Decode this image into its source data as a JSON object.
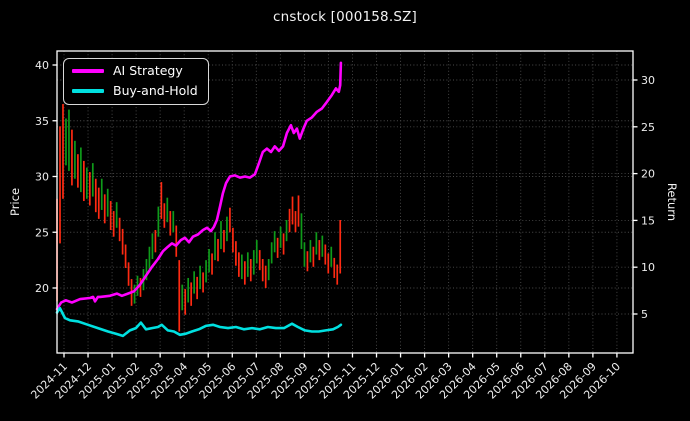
{
  "title": "cnstock [000158.SZ]",
  "axes": {
    "left_label": "Price",
    "right_label": "Return",
    "left_ticks": [
      40,
      35,
      30,
      25,
      20
    ],
    "right_ticks": [
      30,
      25,
      20,
      15,
      10,
      5
    ],
    "x_tick_labels": [
      "2024-11",
      "2024-12",
      "2025-01",
      "2025-02",
      "2025-03",
      "2025-04",
      "2025-05",
      "2025-06",
      "2025-07",
      "2025-08",
      "2025-09",
      "2025-10",
      "2025-11",
      "2025-12",
      "2026-01",
      "2026-02",
      "2026-03",
      "2026-04",
      "2026-05",
      "2026-06",
      "2026-07",
      "2026-08",
      "2026-09",
      "2026-10"
    ]
  },
  "legend": [
    {
      "label": "AI Strategy",
      "color": "#ff00ff"
    },
    {
      "label": "Buy-and-Hold",
      "color": "#00e0e0"
    }
  ],
  "colors": {
    "background": "#000000",
    "frame": "#ffffff",
    "grid": "#4c4c4c",
    "tick_text": "#ededed",
    "candle_up": "#0f9b1a",
    "candle_down": "#ff2a12",
    "ai_strategy": "#ff00ff",
    "buy_and_hold": "#00e0e0"
  },
  "chart_data": {
    "type": "mixed-candlestick-line",
    "title": "cnstock [000158.SZ]",
    "ylabel_left": "Price",
    "ylabel_right": "Return",
    "x_unit": "months since 2024-11 (tick index 0 = 2024-11, 23 = 2026-10)",
    "x_tick_labels": [
      "2024-11",
      "2024-12",
      "2025-01",
      "2025-02",
      "2025-03",
      "2025-04",
      "2025-05",
      "2025-06",
      "2025-07",
      "2025-08",
      "2025-09",
      "2025-10",
      "2025-11",
      "2025-12",
      "2026-01",
      "2026-02",
      "2026-03",
      "2026-04",
      "2026-05",
      "2026-06",
      "2026-07",
      "2026-08",
      "2026-09",
      "2026-10"
    ],
    "left_ylim": [
      14.5,
      41.3
    ],
    "right_ylim": [
      0.8,
      33.1
    ],
    "grid": "dotted, both x and y ticks",
    "legend_position": "upper left",
    "series": [
      {
        "name": "AI Strategy",
        "color": "#ff00ff",
        "axis": "left",
        "line_width": 2.6,
        "points": [
          [
            -0.29,
            18.1
          ],
          [
            -0.12,
            18.7
          ],
          [
            0.08,
            18.9
          ],
          [
            0.33,
            18.7
          ],
          [
            0.67,
            19.0
          ],
          [
            1.08,
            19.1
          ],
          [
            1.21,
            19.2
          ],
          [
            1.29,
            18.8
          ],
          [
            1.41,
            19.2
          ],
          [
            1.5,
            19.2
          ],
          [
            1.91,
            19.3
          ],
          [
            2.2,
            19.5
          ],
          [
            2.41,
            19.3
          ],
          [
            2.66,
            19.5
          ],
          [
            2.91,
            19.7
          ],
          [
            3.16,
            20.3
          ],
          [
            3.41,
            21.1
          ],
          [
            3.66,
            21.9
          ],
          [
            3.91,
            22.6
          ],
          [
            4.12,
            23.3
          ],
          [
            4.32,
            23.7
          ],
          [
            4.49,
            24.0
          ],
          [
            4.66,
            23.8
          ],
          [
            4.86,
            24.3
          ],
          [
            5.03,
            24.5
          ],
          [
            5.2,
            24.1
          ],
          [
            5.36,
            24.6
          ],
          [
            5.57,
            24.8
          ],
          [
            5.78,
            25.2
          ],
          [
            5.95,
            25.4
          ],
          [
            6.11,
            25.1
          ],
          [
            6.24,
            25.5
          ],
          [
            6.36,
            26.1
          ],
          [
            6.49,
            27.3
          ],
          [
            6.61,
            28.5
          ],
          [
            6.74,
            29.4
          ],
          [
            6.9,
            30.0
          ],
          [
            7.11,
            30.1
          ],
          [
            7.32,
            29.9
          ],
          [
            7.53,
            30.0
          ],
          [
            7.73,
            29.9
          ],
          [
            7.94,
            30.2
          ],
          [
            8.11,
            31.2
          ],
          [
            8.27,
            32.2
          ],
          [
            8.44,
            32.5
          ],
          [
            8.61,
            32.2
          ],
          [
            8.77,
            32.7
          ],
          [
            8.94,
            32.3
          ],
          [
            9.11,
            32.7
          ],
          [
            9.27,
            33.9
          ],
          [
            9.44,
            34.6
          ],
          [
            9.56,
            33.9
          ],
          [
            9.69,
            34.3
          ],
          [
            9.81,
            33.4
          ],
          [
            9.94,
            34.2
          ],
          [
            10.1,
            35.0
          ],
          [
            10.31,
            35.3
          ],
          [
            10.52,
            35.8
          ],
          [
            10.73,
            36.1
          ],
          [
            10.94,
            36.7
          ],
          [
            11.14,
            37.3
          ],
          [
            11.31,
            37.9
          ],
          [
            11.43,
            37.6
          ],
          [
            11.49,
            38.2
          ],
          [
            11.52,
            40.2
          ]
        ]
      },
      {
        "name": "Buy-and-Hold",
        "color": "#00e0e0",
        "axis": "left",
        "line_width": 2.6,
        "points": [
          [
            -0.29,
            17.8
          ],
          [
            -0.17,
            18.2
          ],
          [
            0.04,
            17.3
          ],
          [
            0.25,
            17.1
          ],
          [
            0.58,
            17.0
          ],
          [
            1.0,
            16.7
          ],
          [
            1.41,
            16.4
          ],
          [
            1.83,
            16.1
          ],
          [
            2.16,
            15.9
          ],
          [
            2.45,
            15.7
          ],
          [
            2.74,
            16.2
          ],
          [
            2.99,
            16.4
          ],
          [
            3.2,
            16.9
          ],
          [
            3.41,
            16.3
          ],
          [
            3.66,
            16.4
          ],
          [
            3.91,
            16.5
          ],
          [
            4.07,
            16.7
          ],
          [
            4.32,
            16.2
          ],
          [
            4.57,
            16.1
          ],
          [
            4.82,
            15.8
          ],
          [
            5.07,
            15.9
          ],
          [
            5.32,
            16.1
          ],
          [
            5.61,
            16.3
          ],
          [
            5.9,
            16.6
          ],
          [
            6.2,
            16.7
          ],
          [
            6.49,
            16.5
          ],
          [
            6.82,
            16.4
          ],
          [
            7.15,
            16.5
          ],
          [
            7.48,
            16.3
          ],
          [
            7.82,
            16.4
          ],
          [
            8.15,
            16.3
          ],
          [
            8.48,
            16.5
          ],
          [
            8.81,
            16.4
          ],
          [
            9.15,
            16.4
          ],
          [
            9.48,
            16.8
          ],
          [
            9.73,
            16.5
          ],
          [
            10.02,
            16.2
          ],
          [
            10.31,
            16.1
          ],
          [
            10.6,
            16.1
          ],
          [
            10.89,
            16.2
          ],
          [
            11.19,
            16.3
          ],
          [
            11.39,
            16.5
          ],
          [
            11.52,
            16.7
          ]
        ]
      }
    ],
    "candles": {
      "name": "daily price high-low bars",
      "axis": "left",
      "span": [
        -0.29,
        11.49
      ],
      "up_color": "#0f9b1a",
      "down_color": "#ff2a12",
      "bars_format": "[high, low, dir] dir:0=red(down) 1=green(up)",
      "bars": [
        [
          28.0,
          18.8,
          0
        ],
        [
          34.5,
          24.0,
          0
        ],
        [
          36.5,
          28.0,
          0
        ],
        [
          35.2,
          31.0,
          1
        ],
        [
          36.0,
          30.5,
          1
        ],
        [
          34.2,
          29.2,
          0
        ],
        [
          33.2,
          29.8,
          1
        ],
        [
          32.0,
          29.0,
          0
        ],
        [
          32.6,
          28.6,
          1
        ],
        [
          31.4,
          27.8,
          0
        ],
        [
          30.8,
          28.0,
          1
        ],
        [
          30.4,
          27.4,
          0
        ],
        [
          31.2,
          28.2,
          1
        ],
        [
          29.8,
          26.8,
          0
        ],
        [
          29.0,
          26.2,
          0
        ],
        [
          29.8,
          27.0,
          1
        ],
        [
          28.4,
          25.8,
          0
        ],
        [
          28.9,
          26.4,
          1
        ],
        [
          27.8,
          25.2,
          0
        ],
        [
          26.9,
          24.6,
          0
        ],
        [
          27.7,
          25.4,
          1
        ],
        [
          26.3,
          24.2,
          0
        ],
        [
          25.3,
          23.0,
          0
        ],
        [
          23.9,
          21.8,
          0
        ],
        [
          22.3,
          20.2,
          0
        ],
        [
          20.8,
          18.4,
          0
        ],
        [
          20.3,
          18.6,
          1
        ],
        [
          21.1,
          19.3,
          1
        ],
        [
          20.9,
          19.2,
          0
        ],
        [
          21.7,
          19.8,
          1
        ],
        [
          22.6,
          20.7,
          1
        ],
        [
          23.7,
          21.7,
          1
        ],
        [
          24.9,
          22.6,
          1
        ],
        [
          25.2,
          23.2,
          0
        ],
        [
          27.3,
          24.6,
          1
        ],
        [
          29.5,
          26.2,
          0
        ],
        [
          27.6,
          25.4,
          0
        ],
        [
          28.1,
          25.9,
          1
        ],
        [
          26.9,
          24.7,
          0
        ],
        [
          26.9,
          25.0,
          1
        ],
        [
          25.6,
          22.8,
          0
        ],
        [
          22.5,
          16.1,
          0
        ],
        [
          20.3,
          18.0,
          1
        ],
        [
          19.9,
          17.6,
          0
        ],
        [
          20.9,
          18.7,
          1
        ],
        [
          20.5,
          18.4,
          0
        ],
        [
          21.5,
          19.5,
          1
        ],
        [
          21.0,
          19.0,
          0
        ],
        [
          22.0,
          19.9,
          1
        ],
        [
          21.4,
          19.6,
          0
        ],
        [
          22.5,
          20.5,
          1
        ],
        [
          23.5,
          21.4,
          1
        ],
        [
          23.1,
          21.2,
          0
        ],
        [
          25.0,
          22.5,
          1
        ],
        [
          24.4,
          22.4,
          0
        ],
        [
          26.0,
          23.5,
          1
        ],
        [
          25.2,
          23.2,
          0
        ],
        [
          26.4,
          24.2,
          1
        ],
        [
          27.2,
          25.0,
          0
        ],
        [
          25.4,
          23.2,
          0
        ],
        [
          24.2,
          22.0,
          0
        ],
        [
          23.2,
          21.0,
          0
        ],
        [
          23.0,
          20.8,
          1
        ],
        [
          22.4,
          20.3,
          0
        ],
        [
          23.2,
          21.0,
          1
        ],
        [
          22.6,
          20.6,
          0
        ],
        [
          23.4,
          21.2,
          1
        ],
        [
          24.3,
          22.2,
          1
        ],
        [
          23.4,
          21.6,
          0
        ],
        [
          22.6,
          20.6,
          0
        ],
        [
          22.0,
          20.0,
          0
        ],
        [
          22.6,
          20.7,
          1
        ],
        [
          24.1,
          22.2,
          1
        ],
        [
          25.1,
          23.2,
          1
        ],
        [
          24.5,
          22.7,
          0
        ],
        [
          25.5,
          23.6,
          1
        ],
        [
          24.9,
          23.0,
          0
        ],
        [
          26.1,
          24.2,
          1
        ],
        [
          27.1,
          25.0,
          0
        ],
        [
          28.2,
          25.7,
          0
        ],
        [
          26.9,
          25.0,
          0
        ],
        [
          28.3,
          25.5,
          0
        ],
        [
          26.7,
          23.5,
          1
        ],
        [
          24.1,
          21.9,
          1
        ],
        [
          23.3,
          21.5,
          0
        ],
        [
          24.3,
          22.3,
          1
        ],
        [
          23.7,
          21.9,
          0
        ],
        [
          25.0,
          23.0,
          1
        ],
        [
          24.3,
          22.5,
          0
        ],
        [
          24.7,
          22.8,
          1
        ],
        [
          23.9,
          22.1,
          0
        ],
        [
          23.1,
          21.3,
          0
        ],
        [
          23.7,
          21.9,
          1
        ],
        [
          22.7,
          20.9,
          0
        ],
        [
          22.1,
          20.3,
          0
        ],
        [
          26.1,
          21.3,
          0
        ]
      ]
    }
  }
}
